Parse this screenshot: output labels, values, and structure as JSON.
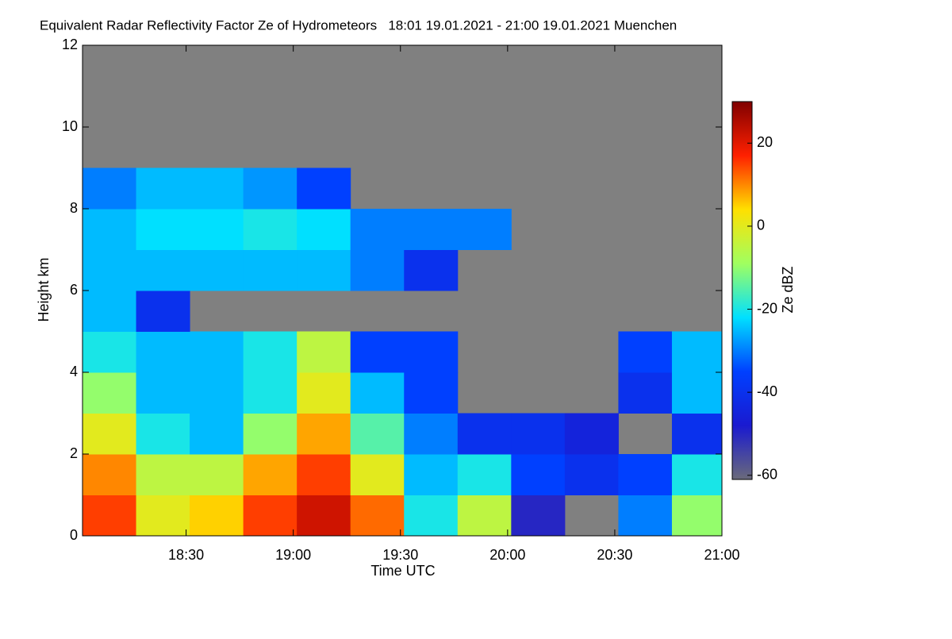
{
  "chart_data": {
    "type": "heatmap",
    "title": "Equivalent Radar Reflectivity Factor Ze of Hydrometeors   18:01 19.01.2021 - 21:00 19.01.2021 Muenchen",
    "x_label": "Time UTC",
    "y_label": "Height km",
    "colorbar_label": "Ze dBZ",
    "x_bins": [
      1081,
      1096,
      1111,
      1126,
      1141,
      1156,
      1171,
      1186,
      1201,
      1216,
      1231,
      1246,
      1260
    ],
    "y_bins": [
      0,
      1,
      2,
      3,
      4,
      5,
      6,
      7,
      8,
      9,
      10,
      11,
      12
    ],
    "z": [
      [
        15,
        0,
        5,
        15,
        22,
        12,
        -20,
        -5,
        -50,
        null,
        -30,
        -10
      ],
      [
        10,
        -5,
        -5,
        8,
        15,
        0,
        -25,
        -20,
        -35,
        -40,
        -35,
        -20
      ],
      [
        0,
        -20,
        -25,
        -10,
        8,
        -15,
        -30,
        -40,
        -40,
        -45,
        null,
        -40
      ],
      [
        -10,
        -25,
        -25,
        -20,
        0,
        -25,
        -35,
        null,
        null,
        null,
        -40,
        -25
      ],
      [
        -20,
        -25,
        -25,
        -20,
        -5,
        -35,
        -35,
        null,
        null,
        null,
        -35,
        -25
      ],
      [
        -25,
        -40,
        null,
        null,
        null,
        null,
        null,
        null,
        null,
        null,
        null,
        null
      ],
      [
        -25,
        -25,
        -25,
        -25,
        -25,
        -30,
        -40,
        null,
        null,
        null,
        null,
        null
      ],
      [
        -25,
        -22,
        -22,
        -20,
        -22,
        -30,
        -30,
        -30,
        null,
        null,
        null,
        null
      ],
      [
        -30,
        -25,
        -25,
        -28,
        -35,
        null,
        null,
        null,
        null,
        null,
        null,
        null
      ],
      [
        null,
        null,
        null,
        null,
        null,
        null,
        null,
        null,
        null,
        null,
        null,
        null
      ],
      [
        null,
        null,
        null,
        null,
        null,
        null,
        null,
        null,
        null,
        null,
        null,
        null
      ],
      [
        null,
        null,
        null,
        null,
        null,
        null,
        null,
        null,
        null,
        null,
        null,
        null
      ]
    ],
    "xlim": [
      1081,
      1260
    ],
    "xticks": [
      {
        "value": 1110,
        "label": "18:30"
      },
      {
        "value": 1140,
        "label": "19:00"
      },
      {
        "value": 1170,
        "label": "19:30"
      },
      {
        "value": 1200,
        "label": "20:00"
      },
      {
        "value": 1230,
        "label": "20:30"
      },
      {
        "value": 1260,
        "label": "21:00"
      }
    ],
    "ylim": [
      0,
      12
    ],
    "yticks": [
      0,
      2,
      4,
      6,
      8,
      10,
      12
    ],
    "zlim": [
      -61,
      30
    ],
    "zticks": [
      -60,
      -40,
      -20,
      0,
      20
    ],
    "colormap": [
      "#6a6a7a",
      "#1a1ad0",
      "#0040ff",
      "#00e0ff",
      "#a0ff60",
      "#ffe000",
      "#ff2000",
      "#800000"
    ],
    "missing_color": "#808080"
  }
}
